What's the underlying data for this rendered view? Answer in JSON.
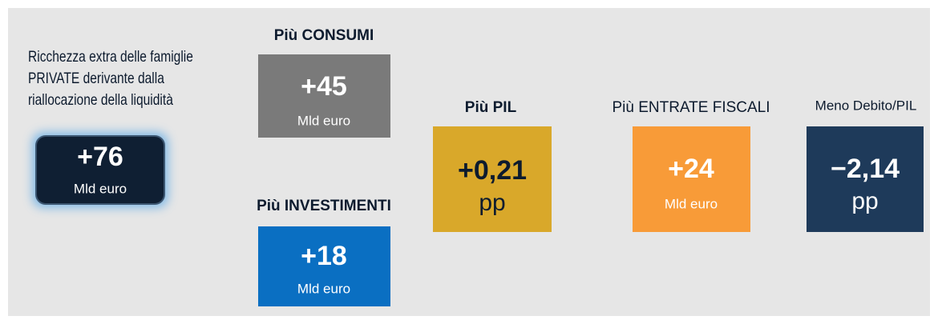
{
  "intro": {
    "lines": [
      "Ricchezza extra delle famiglie",
      "PRIVATE derivante dalla",
      "riallocazione della liquidità"
    ]
  },
  "source_box": {
    "value": "+76",
    "unit": "Mld euro"
  },
  "effects": [
    {
      "title": "Più CONSUMI",
      "value": "+45",
      "unit": "Mld euro"
    },
    {
      "title": "Più INVESTIMENTI",
      "value": "+18",
      "unit": "Mld euro"
    },
    {
      "title": "Più PIL",
      "value": "+0,21",
      "unit": "pp"
    },
    {
      "title": "Più ENTRATE FISCALI",
      "value": "+24",
      "unit": "Mld euro"
    },
    {
      "title": "Meno Debito/PIL",
      "value": "−2,14",
      "unit": "pp"
    }
  ]
}
